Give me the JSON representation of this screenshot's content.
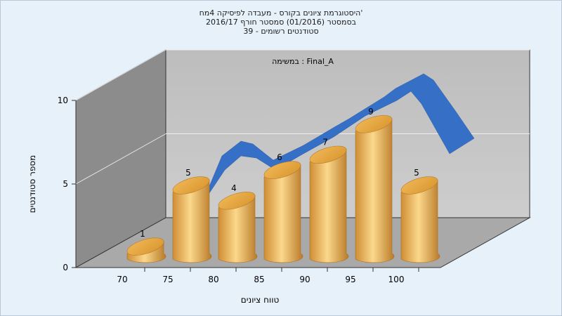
{
  "chart_data": {
    "type": "bar",
    "title_lines": [
      "היסטוגרמת ציונים בקורס - מעבדה לפיסיקה 4מח'",
      "בסמסטר  (01/2016)  סמסטר חורף 2016/17",
      "סטודנטים רשומים - 39"
    ],
    "subtitle": "במשימה : Final_A",
    "xlabel": "טווח ציונים",
    "ylabel": "מספר סטודנטים",
    "categories": [
      "70",
      "75",
      "80",
      "85",
      "90",
      "95",
      "100"
    ],
    "values": [
      1,
      5,
      4,
      6,
      7,
      9,
      5
    ],
    "yticks": [
      0,
      5,
      10
    ],
    "ylim": [
      0,
      10
    ],
    "grid": true,
    "series": [
      {
        "kind": "bar",
        "values": [
          1,
          5,
          4,
          6,
          7,
          9,
          5
        ]
      },
      {
        "kind": "area-ribbon",
        "values": [
          null,
          5,
          6,
          6,
          7,
          9,
          5
        ]
      }
    ],
    "colors": {
      "bar_light": "#fbd88c",
      "bar_mid": "#e6a84a",
      "bar_dark": "#b97a28",
      "ribbon": "#3670c6",
      "wall_back": "#c2c2c2",
      "wall_side": "#8a8a8a",
      "floor": "#ababab"
    }
  }
}
